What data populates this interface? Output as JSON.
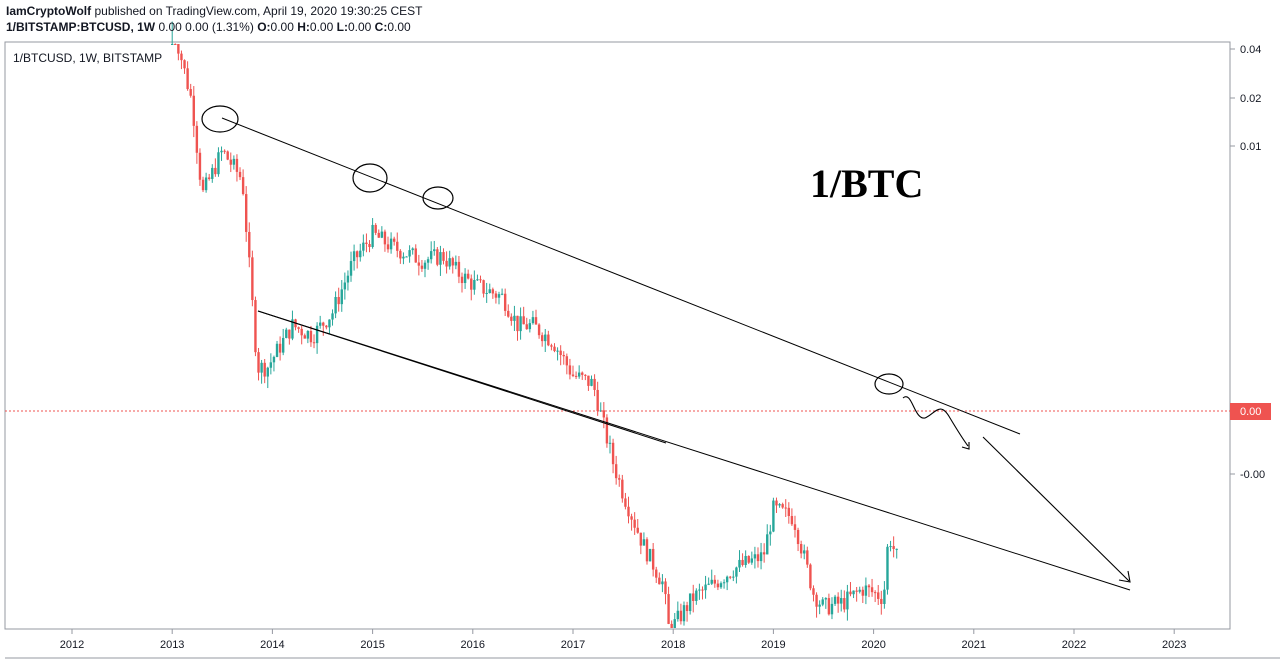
{
  "header": {
    "author": "IamCryptoWolf",
    "published": "published on TradingView.com, April 19, 2020 19:30:25 CEST",
    "symbol_line": {
      "symbol": "1/BITSTAMP:BTCUSD, 1W",
      "values": "0.00 0.00 (1.31%)",
      "o_label": "O:",
      "o_value": "0.00",
      "h_label": "H:",
      "h_value": "0.00",
      "l_label": "L:",
      "l_value": "0.00",
      "c_label": "C:",
      "c_value": "0.00"
    }
  },
  "chart_data": {
    "type": "line",
    "legend_text": "1/BTCUSD, 1W, BITSTAMP",
    "annotation_title": "1/BTC",
    "x_ticks": [
      "2012",
      "2013",
      "2014",
      "2015",
      "2016",
      "2017",
      "2018",
      "2019",
      "2020",
      "2021",
      "2022",
      "2023"
    ],
    "y_ticks": [
      "0.04",
      "0.02",
      "0.01",
      "-0.00"
    ],
    "current_price_label": "0.00",
    "log_scale": true,
    "grid": false,
    "colors": {
      "up": "#26a69a",
      "down": "#ef5350",
      "price_line": "#ef5350",
      "drawing": "#000000"
    },
    "series": [
      {
        "x": [
          2013.0,
          2013.2,
          2013.3,
          2013.5,
          2013.7,
          2013.85,
          2013.95,
          2014.2,
          2014.4,
          2014.6,
          2014.8,
          2015.0,
          2015.2,
          2015.5,
          2015.7,
          2015.85,
          2016.0,
          2016.3,
          2016.45,
          2016.6,
          2016.8,
          2017.0,
          2017.2,
          2017.4,
          2017.5,
          2017.7,
          2017.9,
          2017.96,
          2018.2,
          2018.4,
          2018.6,
          2018.9,
          2019.0,
          2019.2,
          2019.4,
          2019.5,
          2019.7,
          2019.9,
          2020.1,
          2020.15,
          2020.25
        ],
        "y": [
          0.055,
          0.022,
          0.008,
          0.013,
          0.0095,
          0.0012,
          0.0012,
          0.0019,
          0.0017,
          0.0022,
          0.0038,
          0.0052,
          0.0045,
          0.0039,
          0.0041,
          0.0034,
          0.003,
          0.0026,
          0.0019,
          0.0019,
          0.0016,
          0.0011,
          0.001,
          0.00042,
          0.0003,
          0.00017,
          0.00011,
          6.5e-05,
          9.5e-05,
          0.00011,
          0.00013,
          0.00015,
          0.00025,
          0.00023,
          0.0001,
          8.5e-05,
          9e-05,
          0.000105,
          9.5e-05,
          0.00019,
          0.00014
        ]
      }
    ]
  }
}
